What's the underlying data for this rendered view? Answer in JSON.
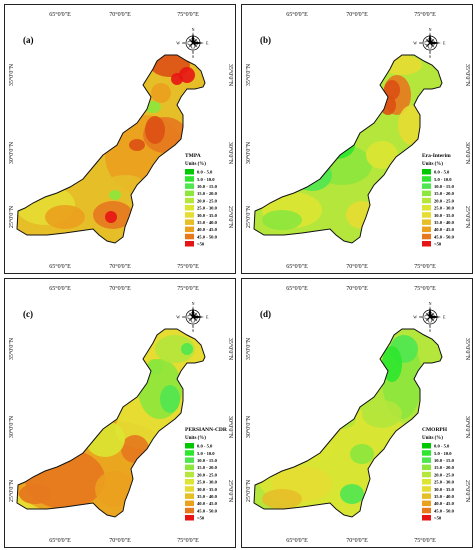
{
  "colors": {
    "c0": "#00c800",
    "c1": "#2ee62e",
    "c2": "#50e650",
    "c3": "#8ce63c",
    "c4": "#b4e63c",
    "c5": "#dce632",
    "c6": "#e6dc32",
    "c7": "#e6be28",
    "c8": "#eba01e",
    "c9": "#e6781e",
    "c10": "#dc5014",
    "c11": "#e61414"
  },
  "ticks": {
    "x": [
      "65°0'0\"E",
      "70°0'0\"E",
      "75°0'0\"E"
    ],
    "y": [
      "35°0'0\"N",
      "30°0'0\"N",
      "25°0'0\"N"
    ]
  },
  "units_label": "Units (%)",
  "legend_classes": [
    "0.0 - 5.0",
    "5.0 - 10.0",
    "10.0 - 15.0",
    "15.0 - 20.0",
    "20.0 - 25.0",
    "25.0 - 30.0",
    "30.0 - 35.0",
    "35.0 - 40.0",
    "40.0 - 45.0",
    "45.0 - 50.0",
    ">50"
  ],
  "compass": {
    "n": "N",
    "s": "S",
    "e": "E",
    "w": "W"
  },
  "panels": [
    {
      "label": "(a)",
      "product": "TMPA",
      "base": "c7"
    },
    {
      "label": "(b)",
      "product": "Era-Interim",
      "base": "c4"
    },
    {
      "label": "(c)",
      "product": "PERSIANN-CDR",
      "base": "c6"
    },
    {
      "label": "(d)",
      "product": "CMORPH",
      "base": "c4"
    }
  ]
}
